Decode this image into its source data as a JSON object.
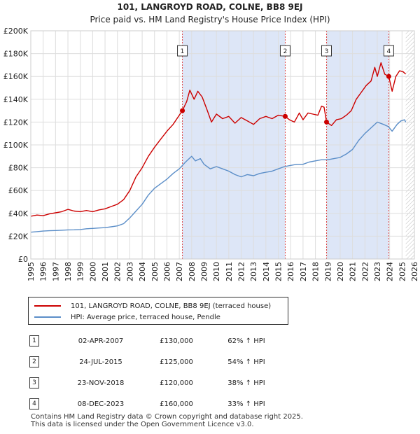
{
  "header": {
    "title": "101, LANGROYD ROAD, COLNE, BB8 9EJ",
    "subtitle": "Price paid vs. HM Land Registry's House Price Index (HPI)"
  },
  "chart_data": {
    "type": "line",
    "y_ticks": [
      "£0",
      "£20K",
      "£40K",
      "£60K",
      "£80K",
      "£100K",
      "£120K",
      "£140K",
      "£160K",
      "£180K",
      "£200K"
    ],
    "x_ticks": [
      "1995",
      "1996",
      "1997",
      "1998",
      "1999",
      "2000",
      "2001",
      "2002",
      "2003",
      "2004",
      "2005",
      "2006",
      "2007",
      "2008",
      "2009",
      "2010",
      "2011",
      "2012",
      "2013",
      "2014",
      "2015",
      "2016",
      "2017",
      "2018",
      "2019",
      "2020",
      "2021",
      "2022",
      "2023",
      "2024",
      "2025",
      "2026"
    ],
    "xlim": [
      1995,
      2026
    ],
    "ylim": [
      0,
      200000
    ],
    "colors": {
      "property": "#cc0000",
      "hpi": "#5b8ec8",
      "shade": "#dde6f7",
      "grid": "#dddddd",
      "vline": "#dd4444"
    },
    "series": [
      {
        "name": "101, LANGROYD ROAD, COLNE, BB8 9EJ (terraced house)",
        "points": [
          [
            1995.0,
            37500
          ],
          [
            1995.5,
            38500
          ],
          [
            1996.0,
            38000
          ],
          [
            1996.5,
            39500
          ],
          [
            1997.0,
            40500
          ],
          [
            1997.5,
            41500
          ],
          [
            1998.0,
            43500
          ],
          [
            1998.5,
            42000
          ],
          [
            1999.0,
            41500
          ],
          [
            1999.5,
            42500
          ],
          [
            2000.0,
            41500
          ],
          [
            2000.5,
            43000
          ],
          [
            2001.0,
            44000
          ],
          [
            2001.5,
            46000
          ],
          [
            2002.0,
            48000
          ],
          [
            2002.5,
            52000
          ],
          [
            2003.0,
            60000
          ],
          [
            2003.5,
            72000
          ],
          [
            2004.0,
            80000
          ],
          [
            2004.5,
            90000
          ],
          [
            2005.0,
            98000
          ],
          [
            2005.5,
            105000
          ],
          [
            2006.0,
            112000
          ],
          [
            2006.5,
            118000
          ],
          [
            2007.0,
            126000
          ],
          [
            2007.25,
            130000
          ],
          [
            2007.6,
            138000
          ],
          [
            2007.85,
            148000
          ],
          [
            2008.2,
            140000
          ],
          [
            2008.5,
            147000
          ],
          [
            2008.85,
            142000
          ],
          [
            2009.2,
            132000
          ],
          [
            2009.6,
            120000
          ],
          [
            2010.0,
            127000
          ],
          [
            2010.5,
            123000
          ],
          [
            2011.0,
            125000
          ],
          [
            2011.5,
            119000
          ],
          [
            2012.0,
            124000
          ],
          [
            2012.5,
            121000
          ],
          [
            2013.0,
            118000
          ],
          [
            2013.5,
            123000
          ],
          [
            2014.0,
            125000
          ],
          [
            2014.5,
            123000
          ],
          [
            2015.0,
            126000
          ],
          [
            2015.56,
            125000
          ],
          [
            2015.9,
            122000
          ],
          [
            2016.3,
            120000
          ],
          [
            2016.7,
            128000
          ],
          [
            2017.0,
            122000
          ],
          [
            2017.4,
            128000
          ],
          [
            2017.8,
            127000
          ],
          [
            2018.2,
            126000
          ],
          [
            2018.5,
            134000
          ],
          [
            2018.7,
            133000
          ],
          [
            2018.9,
            120000
          ],
          [
            2019.3,
            117000
          ],
          [
            2019.7,
            122000
          ],
          [
            2020.1,
            123000
          ],
          [
            2020.5,
            126000
          ],
          [
            2020.9,
            130000
          ],
          [
            2021.3,
            140000
          ],
          [
            2021.7,
            146000
          ],
          [
            2022.1,
            152000
          ],
          [
            2022.5,
            156000
          ],
          [
            2022.8,
            168000
          ],
          [
            2023.0,
            160000
          ],
          [
            2023.3,
            172000
          ],
          [
            2023.6,
            162000
          ],
          [
            2023.93,
            160000
          ],
          [
            2024.2,
            147000
          ],
          [
            2024.5,
            160000
          ],
          [
            2024.8,
            165000
          ],
          [
            2025.1,
            164000
          ],
          [
            2025.3,
            162000
          ]
        ]
      },
      {
        "name": "HPI: Average price, terraced house, Pendle",
        "points": [
          [
            1995.0,
            23500
          ],
          [
            1995.5,
            24000
          ],
          [
            1996.0,
            24500
          ],
          [
            1996.5,
            24800
          ],
          [
            1997.0,
            25000
          ],
          [
            1997.5,
            25200
          ],
          [
            1998.0,
            25500
          ],
          [
            1998.5,
            25600
          ],
          [
            1999.0,
            25800
          ],
          [
            1999.5,
            26500
          ],
          [
            2000.0,
            26800
          ],
          [
            2000.5,
            27200
          ],
          [
            2001.0,
            27500
          ],
          [
            2001.5,
            28200
          ],
          [
            2002.0,
            29000
          ],
          [
            2002.5,
            31000
          ],
          [
            2003.0,
            36000
          ],
          [
            2003.5,
            42000
          ],
          [
            2004.0,
            48000
          ],
          [
            2004.5,
            56000
          ],
          [
            2005.0,
            62000
          ],
          [
            2005.5,
            66000
          ],
          [
            2006.0,
            70000
          ],
          [
            2006.5,
            75000
          ],
          [
            2007.0,
            79000
          ],
          [
            2007.5,
            85000
          ],
          [
            2008.0,
            90000
          ],
          [
            2008.3,
            86000
          ],
          [
            2008.7,
            88000
          ],
          [
            2009.0,
            83000
          ],
          [
            2009.5,
            79000
          ],
          [
            2010.0,
            81000
          ],
          [
            2010.5,
            79000
          ],
          [
            2011.0,
            77000
          ],
          [
            2011.5,
            74000
          ],
          [
            2012.0,
            72000
          ],
          [
            2012.5,
            74000
          ],
          [
            2013.0,
            73000
          ],
          [
            2013.5,
            75000
          ],
          [
            2014.0,
            76000
          ],
          [
            2014.5,
            77000
          ],
          [
            2015.0,
            79000
          ],
          [
            2015.5,
            81000
          ],
          [
            2016.0,
            82000
          ],
          [
            2016.5,
            83000
          ],
          [
            2017.0,
            83000
          ],
          [
            2017.5,
            85000
          ],
          [
            2018.0,
            86000
          ],
          [
            2018.5,
            87000
          ],
          [
            2019.0,
            87000
          ],
          [
            2019.5,
            88000
          ],
          [
            2020.0,
            89000
          ],
          [
            2020.5,
            92000
          ],
          [
            2021.0,
            96000
          ],
          [
            2021.5,
            104000
          ],
          [
            2022.0,
            110000
          ],
          [
            2022.5,
            115000
          ],
          [
            2023.0,
            120000
          ],
          [
            2023.5,
            118000
          ],
          [
            2023.9,
            116000
          ],
          [
            2024.2,
            112000
          ],
          [
            2024.6,
            118000
          ],
          [
            2024.9,
            121000
          ],
          [
            2025.2,
            122000
          ],
          [
            2025.3,
            120000
          ]
        ]
      }
    ],
    "sales": [
      {
        "label": "1",
        "x": 2007.25,
        "value": 130000
      },
      {
        "label": "2",
        "x": 2015.56,
        "value": 125000
      },
      {
        "label": "3",
        "x": 2018.9,
        "value": 120000
      },
      {
        "label": "4",
        "x": 2023.93,
        "value": 160000
      }
    ],
    "shaded_ranges": [
      [
        2007.25,
        2015.56
      ],
      [
        2018.9,
        2023.93
      ]
    ],
    "hatch_from": 2025.3
  },
  "legend": {
    "property": "101, LANGROYD ROAD, COLNE, BB8 9EJ (terraced house)",
    "hpi": "HPI: Average price, terraced house, Pendle"
  },
  "sales_table": [
    {
      "num": "1",
      "date": "02-APR-2007",
      "price": "£130,000",
      "pct": "62% ↑ HPI"
    },
    {
      "num": "2",
      "date": "24-JUL-2015",
      "price": "£125,000",
      "pct": "54% ↑ HPI"
    },
    {
      "num": "3",
      "date": "23-NOV-2018",
      "price": "£120,000",
      "pct": "38% ↑ HPI"
    },
    {
      "num": "4",
      "date": "08-DEC-2023",
      "price": "£160,000",
      "pct": "33% ↑ HPI"
    }
  ],
  "footer": {
    "line1": "Contains HM Land Registry data © Crown copyright and database right 2025.",
    "line2": "This data is licensed under the Open Government Licence v3.0."
  }
}
